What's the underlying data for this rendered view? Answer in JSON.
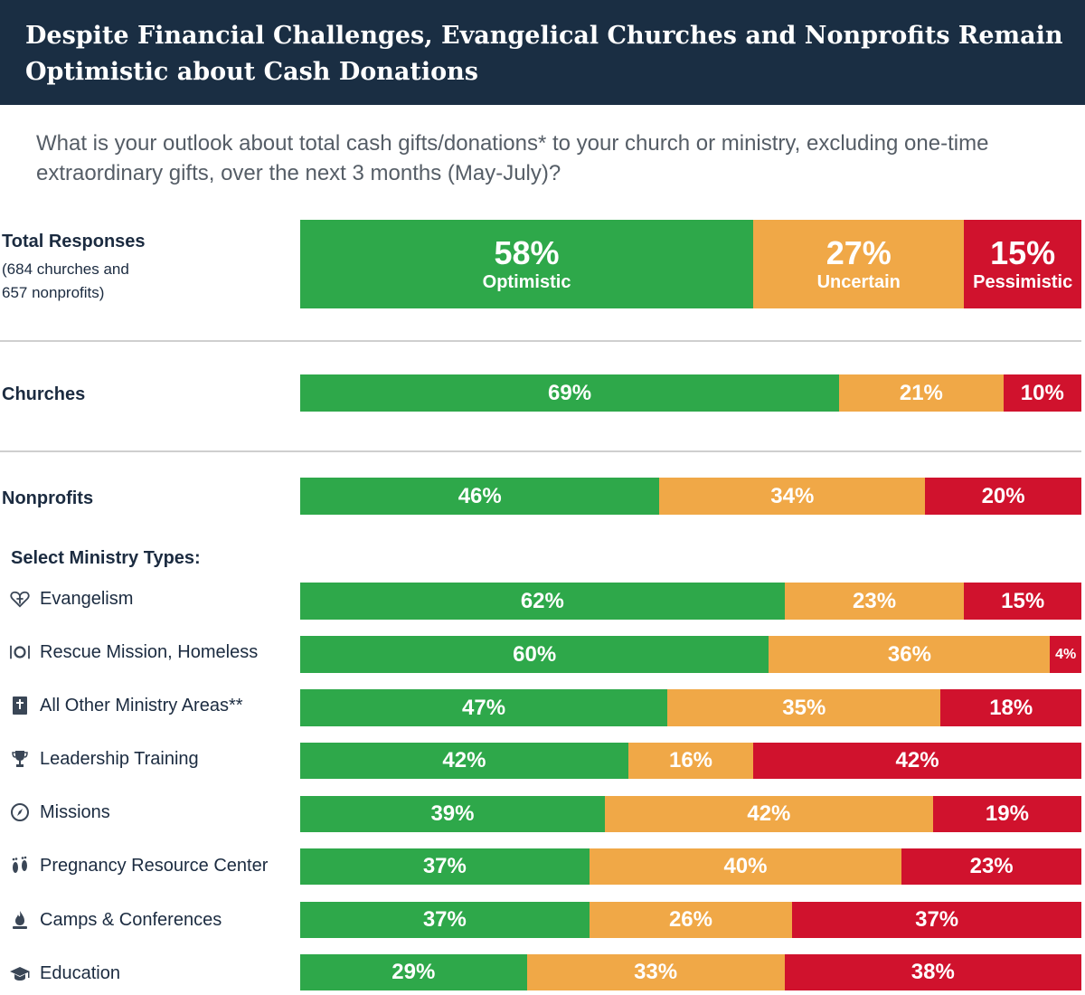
{
  "header": {
    "title": "Despite Financial Challenges, Evangelical Churches and Nonprofits Remain Optimistic about Cash Donations",
    "question": "What is your outlook about total cash gifts/donations* to your church or ministry, excluding one-time extraordinary gifts, over the next 3 months (May-July)?"
  },
  "total": {
    "label": "Total Responses",
    "note_line1": "(684 churches and",
    "note_line2": "657 nonprofits)"
  },
  "churches_label": "Churches",
  "nonprofits_label": "Nonprofits",
  "select_label": "Select Ministry Types:",
  "outlook_labels": [
    "Optimistic",
    "Uncertain",
    "Pessimistic"
  ],
  "colors": {
    "optimistic": "#2ea84a",
    "uncertain": "#f0a847",
    "pessimistic": "#d0122d",
    "title_bg": "#1a2e43",
    "text": "#1b2b40"
  },
  "categories": [
    {
      "label": "Evangelism",
      "icon": "heart-cross-icon"
    },
    {
      "label": "Rescue Mission, Homeless",
      "icon": "plate-utensils-icon"
    },
    {
      "label": "All Other Ministry Areas**",
      "icon": "bible-icon"
    },
    {
      "label": "Leadership Training",
      "icon": "trophy-icon"
    },
    {
      "label": "Missions",
      "icon": "compass-icon"
    },
    {
      "label": "Pregnancy Resource Center",
      "icon": "footprints-icon"
    },
    {
      "label": "Camps & Conferences",
      "icon": "campfire-icon"
    },
    {
      "label": "Education",
      "icon": "graduation-cap-icon"
    }
  ],
  "chart_data": {
    "type": "bar",
    "stacked": true,
    "orientation": "horizontal",
    "categories": [
      "Total Responses",
      "Churches",
      "Nonprofits",
      "Evangelism",
      "Rescue Mission, Homeless",
      "All Other Ministry Areas**",
      "Leadership Training",
      "Missions",
      "Pregnancy Resource Center",
      "Camps & Conferences",
      "Education"
    ],
    "series": [
      {
        "name": "Optimistic",
        "values": [
          58,
          69,
          46,
          62,
          60,
          47,
          42,
          39,
          37,
          37,
          29
        ]
      },
      {
        "name": "Uncertain",
        "values": [
          27,
          21,
          34,
          23,
          36,
          35,
          16,
          42,
          40,
          26,
          33
        ]
      },
      {
        "name": "Pessimistic",
        "values": [
          15,
          10,
          20,
          15,
          4,
          18,
          42,
          19,
          23,
          37,
          38
        ]
      }
    ],
    "unit": "%"
  }
}
